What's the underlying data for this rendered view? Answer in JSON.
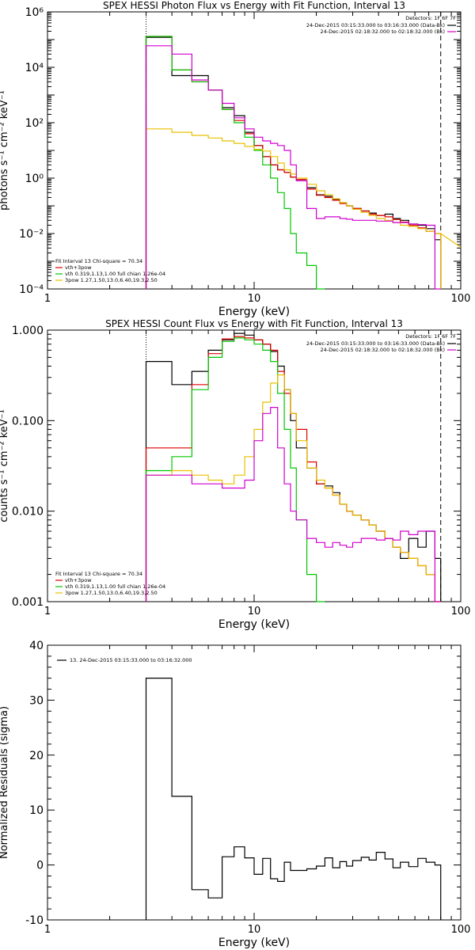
{
  "chart_data": [
    {
      "type": "line",
      "title": "SPEX HESSI Photon Flux vs Energy with Fit Function, Interval 13",
      "xlabel": "Energy (keV)",
      "ylabel": "photons s⁻¹ cm⁻² keV⁻¹",
      "xscale": "log",
      "yscale": "log",
      "xlim": [
        1,
        100
      ],
      "ylim": [
        0.0001,
        1000000
      ],
      "x_ticks": [
        1,
        10,
        100
      ],
      "x_tick_labels": [
        "1",
        "10",
        "100"
      ],
      "y_ticks": [
        0.0001,
        0.01,
        1,
        100,
        10000,
        1000000
      ],
      "y_tick_labels": [
        "10⁻⁴",
        "10⁻²",
        "10⁰",
        "10²",
        "10⁴",
        "10⁶"
      ],
      "grid": false,
      "legend_top": {
        "header": "Detectors: 1F 6F 7F",
        "entries": [
          {
            "label": "24-Dec-2015 03:15:33.000 to 03:16:33.000 (Data-Bk)",
            "color": "#000000"
          },
          {
            "label": "24-Dec-2015 02:18:32.000 to 02:18:32.000 (Bk)",
            "color": "#d000d0"
          }
        ]
      },
      "legend_bottom": {
        "header": "Fit Interval 13    Chi-square = 70.34",
        "entries": [
          {
            "label": "vth+3pow",
            "color": "#e00000"
          },
          {
            "label": "vth 0.319,1.13,1.00   full chian 1.26e-04",
            "color": "#00c800"
          },
          {
            "label": "3pow 1.27,1.50,13.0,6.40,19.3,2.50",
            "color": "#e8c000"
          }
        ]
      },
      "vlines": [
        {
          "x": 3.0,
          "style": "dotted"
        },
        {
          "x": 80.0,
          "style": "dashed"
        }
      ],
      "x_edges": [
        3.0,
        4.0,
        5.0,
        6.0,
        7.0,
        8.0,
        9.0,
        10.0,
        11.0,
        12.0,
        13.0,
        14.0,
        15.0,
        16.0,
        18.0,
        20.0,
        22.0,
        24.0,
        26.0,
        28.0,
        30.0,
        33.0,
        36.0,
        39.0,
        43.0,
        47.0,
        51.0,
        56.0,
        62.0,
        68.0,
        75.0,
        80.0
      ],
      "series": [
        {
          "name": "Data-Bk",
          "color": "#000000",
          "values": [
            120000,
            5000,
            5000,
            1500,
            350,
            180,
            45,
            15,
            6,
            3,
            2,
            1.6,
            1.1,
            0.9,
            0.45,
            0.25,
            0.22,
            0.17,
            0.13,
            0.1,
            0.08,
            0.065,
            0.055,
            0.045,
            0.05,
            0.035,
            0.03,
            0.022,
            0.02,
            0.015,
            0.006
          ]
        },
        {
          "name": "vth+3pow",
          "color": "#e00000",
          "values": [
            130000,
            8000,
            3000,
            1500,
            300,
            120,
            40,
            15,
            6,
            3,
            2,
            1.6,
            1.1,
            0.9,
            0.4,
            0.24,
            0.2,
            0.16,
            0.12,
            0.1,
            0.08,
            0.065,
            0.05,
            0.045,
            0.04,
            0.032,
            0.026,
            0.02,
            0.016,
            0.012,
            0.01
          ]
        },
        {
          "name": "vth",
          "color": "#00c800",
          "values": [
            130000,
            8000,
            3000,
            1500,
            300,
            100,
            30,
            10,
            3,
            1,
            0.3,
            0.08,
            0.01,
            0.002,
            0.0007,
            0.0001
          ]
        },
        {
          "name": "3pow",
          "color": "#e8c000",
          "values": [
            60,
            45,
            35,
            28,
            22,
            18,
            14,
            11,
            9.5,
            6,
            3.5,
            2,
            1.4,
            1,
            0.6,
            0.35,
            0.25,
            0.18,
            0.13,
            0.1,
            0.075,
            0.058,
            0.045,
            0.035,
            0.03,
            0.025,
            0.02,
            0.018,
            0.015,
            0.012,
            0.01
          ]
        },
        {
          "name": "Bk",
          "color": "#d000d0",
          "values": [
            60000,
            30000,
            3500,
            1500,
            500,
            150,
            60,
            30,
            22,
            18,
            15,
            10,
            3,
            0.8,
            0.08,
            0.035,
            0.04,
            0.04,
            0.035,
            0.033,
            0.03,
            0.03,
            0.03,
            0.028,
            0.028,
            0.025,
            0.025,
            0.022,
            0.021,
            0.02,
            0.0001
          ]
        }
      ],
      "tail": [
        {
          "series": "3pow",
          "from": 80,
          "to": 100,
          "y_from": 0.01,
          "y_to": 0.0032
        }
      ]
    },
    {
      "type": "line",
      "title": "SPEX HESSI Count Flux vs Energy with Fit Function, Interval 13",
      "xlabel": "Energy (keV)",
      "ylabel": "counts s⁻¹ cm⁻² keV⁻¹",
      "xscale": "log",
      "yscale": "log",
      "xlim": [
        1,
        100
      ],
      "ylim": [
        0.001,
        1
      ],
      "x_ticks": [
        1,
        10,
        100
      ],
      "x_tick_labels": [
        "1",
        "10",
        "100"
      ],
      "y_ticks": [
        0.001,
        0.01,
        0.1,
        1
      ],
      "y_tick_labels": [
        "0.001",
        "0.010",
        "0.100",
        "1.000"
      ],
      "grid": false,
      "legend_top": {
        "header": "Detectors: 1F 6F 7F",
        "entries": [
          {
            "label": "24-Dec-2015 03:15:33.000 to 03:16:33.000 (Data-Bk)",
            "color": "#000000"
          },
          {
            "label": "24-Dec-2015 02:18:32.000 to 02:18:32.000 (Bk)",
            "color": "#d000d0"
          }
        ]
      },
      "legend_bottom": {
        "header": "Fit Interval 13    Chi-square = 70.34",
        "entries": [
          {
            "label": "vth+3pow",
            "color": "#e00000"
          },
          {
            "label": "vth 0.319,1.13,1.00   full chian 1.26e-04",
            "color": "#00c800"
          },
          {
            "label": "3pow 1.27,1.50,13.0,6.40,19.3,2.50",
            "color": "#e8c000"
          }
        ]
      },
      "vlines": [
        {
          "x": 3.0,
          "style": "dotted"
        },
        {
          "x": 80.0,
          "style": "dashed"
        }
      ],
      "x_edges": [
        3.0,
        4.0,
        5.0,
        6.0,
        7.0,
        8.0,
        9.0,
        10.0,
        11.0,
        12.0,
        13.0,
        14.0,
        15.0,
        16.0,
        18.0,
        20.0,
        22.0,
        24.0,
        26.0,
        28.0,
        30.0,
        33.0,
        36.0,
        39.0,
        43.0,
        47.0,
        51.0,
        56.0,
        62.0,
        68.0,
        75.0,
        80.0
      ],
      "series": [
        {
          "name": "Data-Bk",
          "color": "#000000",
          "values": [
            0.45,
            0.25,
            0.35,
            0.6,
            0.78,
            0.92,
            0.88,
            0.78,
            0.7,
            0.58,
            0.4,
            0.22,
            0.1,
            0.05,
            0.03,
            0.02,
            0.019,
            0.016,
            0.012,
            0.01,
            0.009,
            0.008,
            0.007,
            0.006,
            0.005,
            0.004,
            0.003,
            0.005,
            0.004,
            0.006,
            0.003
          ]
        },
        {
          "name": "vth+3pow",
          "color": "#e00000",
          "values": [
            0.05,
            0.05,
            0.25,
            0.55,
            0.8,
            0.85,
            0.82,
            0.78,
            0.7,
            0.6,
            0.35,
            0.2,
            0.12,
            0.08,
            0.035,
            0.02,
            0.018,
            0.015,
            0.012,
            0.01,
            0.009,
            0.008,
            0.007,
            0.006,
            0.005,
            0.004,
            0.0035,
            0.003,
            0.0025,
            0.002,
            0.001
          ]
        },
        {
          "name": "vth",
          "color": "#00c800",
          "values": [
            0.028,
            0.04,
            0.22,
            0.5,
            0.75,
            0.82,
            0.78,
            0.7,
            0.6,
            0.45,
            0.2,
            0.08,
            0.03,
            0.008,
            0.002,
            0.0005
          ]
        },
        {
          "name": "3pow",
          "color": "#e8c000",
          "values": [
            0.025,
            0.028,
            0.025,
            0.022,
            0.02,
            0.025,
            0.04,
            0.08,
            0.16,
            0.26,
            0.32,
            0.22,
            0.12,
            0.06,
            0.03,
            0.022,
            0.018,
            0.015,
            0.012,
            0.01,
            0.009,
            0.008,
            0.007,
            0.006,
            0.005,
            0.004,
            0.0035,
            0.003,
            0.0025,
            0.002,
            0.001
          ]
        },
        {
          "name": "Bk",
          "color": "#d000d0",
          "values": [
            0.025,
            0.025,
            0.02,
            0.02,
            0.018,
            0.018,
            0.022,
            0.06,
            0.12,
            0.14,
            0.05,
            0.02,
            0.01,
            0.008,
            0.005,
            0.0045,
            0.004,
            0.0045,
            0.0042,
            0.004,
            0.0045,
            0.005,
            0.005,
            0.0048,
            0.005,
            0.0048,
            0.006,
            0.0055,
            0.006,
            0.006,
            0.0006
          ]
        }
      ]
    },
    {
      "type": "line",
      "title": "",
      "xlabel": "Energy (keV)",
      "ylabel": "Normalized Residuals (sigma)",
      "xscale": "log",
      "yscale": "linear",
      "xlim": [
        1,
        100
      ],
      "ylim": [
        -10,
        40
      ],
      "x_ticks": [
        1,
        10,
        100
      ],
      "x_tick_labels": [
        "1",
        "10",
        "100"
      ],
      "y_ticks": [
        -10,
        0,
        10,
        20,
        30,
        40
      ],
      "y_tick_labels": [
        "-10",
        "0",
        "10",
        "20",
        "30",
        "40"
      ],
      "grid": false,
      "legend": {
        "entries": [
          {
            "label": "13. 24-Dec-2015 03:15:33.000 to 03:16:32.000",
            "color": "#000000"
          }
        ]
      },
      "x_edges": [
        3.0,
        4.0,
        5.0,
        6.0,
        7.0,
        8.0,
        9.0,
        10.0,
        11.0,
        12.0,
        13.0,
        14.0,
        15.0,
        16.0,
        18.0,
        20.0,
        22.0,
        24.0,
        26.0,
        28.0,
        30.0,
        33.0,
        36.0,
        39.0,
        43.0,
        47.0,
        51.0,
        56.0,
        62.0,
        68.0,
        75.0,
        80.0
      ],
      "series": [
        {
          "name": "13",
          "color": "#000000",
          "values": [
            34,
            12.5,
            -4.5,
            -6,
            1.5,
            3.3,
            1.3,
            -1.7,
            1.2,
            -2.5,
            -3,
            0.5,
            -1,
            -1,
            -0.7,
            -0.2,
            1.3,
            -0.5,
            0.6,
            -0.2,
            0.8,
            1.4,
            0.9,
            2.3,
            1.1,
            -0.5,
            0.5,
            -0.3,
            1.2,
            0.5,
            0
          ]
        }
      ]
    }
  ]
}
